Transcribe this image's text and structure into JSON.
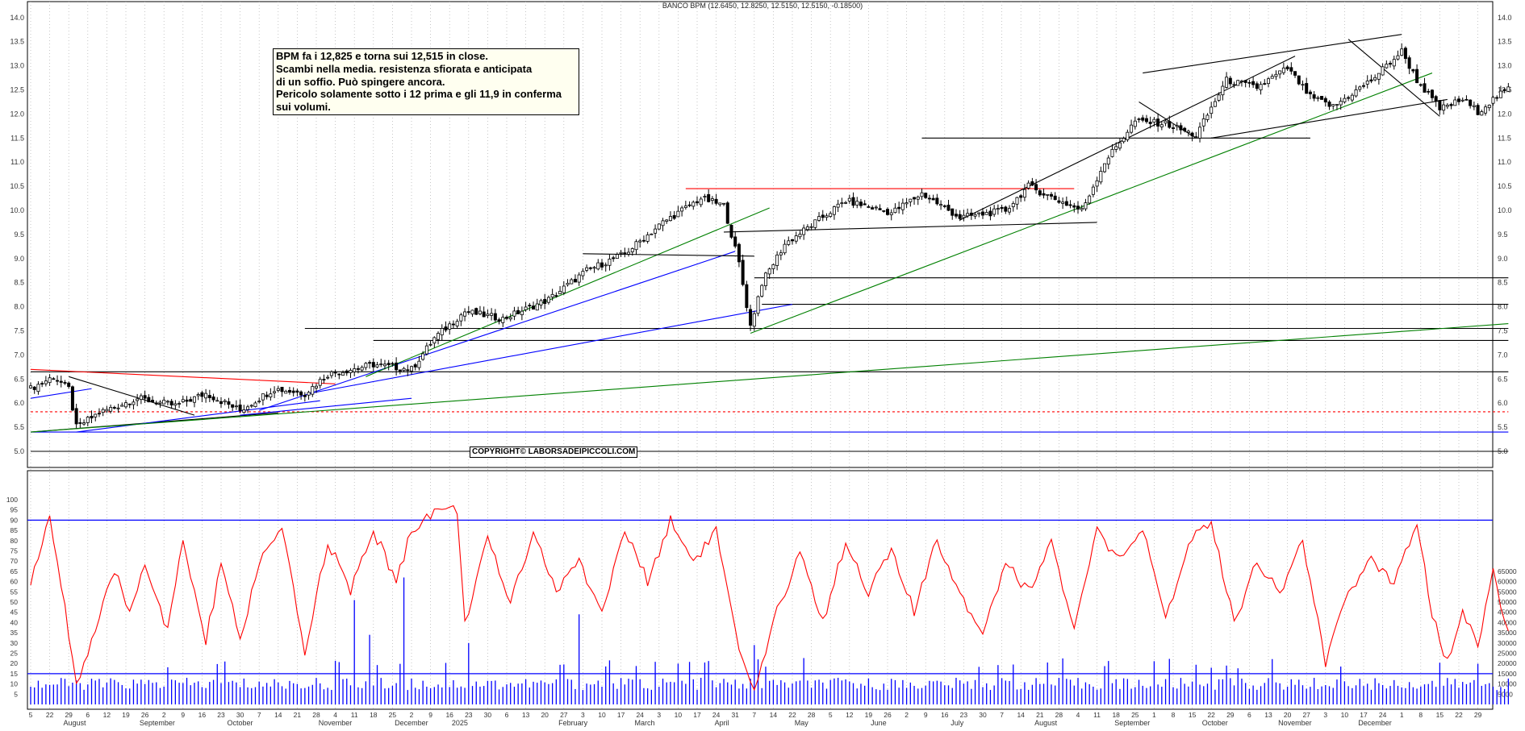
{
  "chart_data": [
    {
      "type": "candlestick",
      "title": "BANCO BPM (12.6450, 12.8250, 12.5150, 12.5150, -0.18500)",
      "ylim": [
        5.0,
        14.0
      ],
      "y_ticks": [
        "5.0",
        "5.5",
        "6.0",
        "6.5",
        "7.0",
        "7.5",
        "8.0",
        "8.5",
        "9.0",
        "9.5",
        "10.0",
        "10.5",
        "11.0",
        "11.5",
        "12.0",
        "12.5",
        "13.0",
        "13.5",
        "14.0"
      ],
      "grid": "vertical dotted",
      "last_bar": {
        "open": 12.645,
        "high": 12.825,
        "low": 12.515,
        "close": 12.515,
        "change": -0.185
      },
      "close_path_anchors": [
        {
          "i": 0,
          "close": 6.3
        },
        {
          "i": 6,
          "close": 6.55
        },
        {
          "i": 10,
          "close": 6.3
        },
        {
          "i": 12,
          "close": 5.5
        },
        {
          "i": 18,
          "close": 5.8
        },
        {
          "i": 28,
          "close": 6.1
        },
        {
          "i": 38,
          "close": 5.95
        },
        {
          "i": 46,
          "close": 6.2
        },
        {
          "i": 55,
          "close": 5.85
        },
        {
          "i": 64,
          "close": 6.3
        },
        {
          "i": 72,
          "close": 6.2
        },
        {
          "i": 78,
          "close": 6.6
        },
        {
          "i": 90,
          "close": 6.8
        },
        {
          "i": 100,
          "close": 6.7
        },
        {
          "i": 106,
          "close": 7.35
        },
        {
          "i": 114,
          "close": 7.9
        },
        {
          "i": 124,
          "close": 7.75
        },
        {
          "i": 136,
          "close": 8.15
        },
        {
          "i": 146,
          "close": 8.75
        },
        {
          "i": 156,
          "close": 9.1
        },
        {
          "i": 166,
          "close": 9.75
        },
        {
          "i": 176,
          "close": 10.25
        },
        {
          "i": 182,
          "close": 10.1
        },
        {
          "i": 184,
          "close": 9.5
        },
        {
          "i": 186,
          "close": 8.9
        },
        {
          "i": 189,
          "close": 7.6
        },
        {
          "i": 192,
          "close": 8.5
        },
        {
          "i": 198,
          "close": 9.3
        },
        {
          "i": 206,
          "close": 9.75
        },
        {
          "i": 214,
          "close": 10.2
        },
        {
          "i": 226,
          "close": 9.95
        },
        {
          "i": 234,
          "close": 10.35
        },
        {
          "i": 244,
          "close": 9.85
        },
        {
          "i": 256,
          "close": 10.0
        },
        {
          "i": 262,
          "close": 10.5
        },
        {
          "i": 270,
          "close": 10.2
        },
        {
          "i": 276,
          "close": 10.0
        },
        {
          "i": 282,
          "close": 11.0
        },
        {
          "i": 290,
          "close": 11.85
        },
        {
          "i": 298,
          "close": 11.8
        },
        {
          "i": 306,
          "close": 11.55
        },
        {
          "i": 314,
          "close": 12.7
        },
        {
          "i": 322,
          "close": 12.55
        },
        {
          "i": 330,
          "close": 12.95
        },
        {
          "i": 336,
          "close": 12.35
        },
        {
          "i": 342,
          "close": 12.15
        },
        {
          "i": 352,
          "close": 12.7
        },
        {
          "i": 360,
          "close": 13.3
        },
        {
          "i": 364,
          "close": 12.7
        },
        {
          "i": 370,
          "close": 12.1
        },
        {
          "i": 376,
          "close": 12.3
        },
        {
          "i": 380,
          "close": 12.05
        },
        {
          "i": 384,
          "close": 12.3
        },
        {
          "i": 388,
          "close": 12.515
        }
      ],
      "trendlines": [
        {
          "color": "#000000",
          "from": {
            "i": 0,
            "y": 6.65
          },
          "to": {
            "i": 388,
            "y": 6.65
          }
        },
        {
          "color": "#000000",
          "from": {
            "i": 0,
            "y": 5.0
          },
          "to": {
            "i": 388,
            "y": 5.0
          }
        },
        {
          "color": "#0000ff",
          "from": {
            "i": 0,
            "y": 5.4
          },
          "to": {
            "i": 388,
            "y": 5.4
          }
        },
        {
          "color": "#ff0000",
          "dashed": true,
          "from": {
            "i": 0,
            "y": 5.82
          },
          "to": {
            "i": 388,
            "y": 5.82
          }
        },
        {
          "color": "#000000",
          "from": {
            "i": 72,
            "y": 7.55
          },
          "to": {
            "i": 388,
            "y": 7.55
          }
        },
        {
          "color": "#000000",
          "from": {
            "i": 90,
            "y": 7.3
          },
          "to": {
            "i": 388,
            "y": 7.3
          }
        },
        {
          "color": "#000000",
          "from": {
            "i": 192,
            "y": 8.05
          },
          "to": {
            "i": 388,
            "y": 8.05
          }
        },
        {
          "color": "#000000",
          "from": {
            "i": 190,
            "y": 8.6
          },
          "to": {
            "i": 388,
            "y": 8.6
          }
        },
        {
          "color": "#ff0000",
          "from": {
            "i": 0,
            "y": 6.7
          },
          "to": {
            "i": 80,
            "y": 6.4
          }
        },
        {
          "color": "#000000",
          "from": {
            "i": 10,
            "y": 6.55
          },
          "to": {
            "i": 43,
            "y": 5.75
          }
        },
        {
          "color": "#000000",
          "from": {
            "i": 0,
            "y": 5.4
          },
          "to": {
            "i": 65,
            "y": 5.8
          }
        },
        {
          "color": "#0000ff",
          "from": {
            "i": 0,
            "y": 6.1
          },
          "to": {
            "i": 16,
            "y": 6.3
          }
        },
        {
          "color": "#0000ff",
          "from": {
            "i": 12,
            "y": 5.4
          },
          "to": {
            "i": 76,
            "y": 6.05
          }
        },
        {
          "color": "#0000ff",
          "from": {
            "i": 55,
            "y": 5.75
          },
          "to": {
            "i": 100,
            "y": 6.1
          }
        },
        {
          "color": "#0000ff",
          "from": {
            "i": 60,
            "y": 5.85
          },
          "to": {
            "i": 185,
            "y": 9.15
          }
        },
        {
          "color": "#0000ff",
          "from": {
            "i": 73,
            "y": 6.2
          },
          "to": {
            "i": 200,
            "y": 8.05
          }
        },
        {
          "color": "#008000",
          "from": {
            "i": 0,
            "y": 5.4
          },
          "to": {
            "i": 388,
            "y": 7.65
          }
        },
        {
          "color": "#008000",
          "from": {
            "i": 88,
            "y": 6.55
          },
          "to": {
            "i": 194,
            "y": 10.05
          }
        },
        {
          "color": "#008000",
          "from": {
            "i": 189,
            "y": 7.45
          },
          "to": {
            "i": 368,
            "y": 12.85
          }
        },
        {
          "color": "#000000",
          "from": {
            "i": 145,
            "y": 9.1
          },
          "to": {
            "i": 190,
            "y": 9.05
          }
        },
        {
          "color": "#000000",
          "from": {
            "i": 182,
            "y": 9.55
          },
          "to": {
            "i": 280,
            "y": 9.75
          }
        },
        {
          "color": "#ff0000",
          "from": {
            "i": 172,
            "y": 10.45
          },
          "to": {
            "i": 274,
            "y": 10.45
          }
        },
        {
          "color": "#000000",
          "from": {
            "i": 234,
            "y": 11.5
          },
          "to": {
            "i": 336,
            "y": 11.5
          }
        },
        {
          "color": "#000000",
          "from": {
            "i": 244,
            "y": 9.8
          },
          "to": {
            "i": 332,
            "y": 13.2
          }
        },
        {
          "color": "#000000",
          "from": {
            "i": 291,
            "y": 12.25
          },
          "to": {
            "i": 306,
            "y": 11.5
          }
        },
        {
          "color": "#000000",
          "from": {
            "i": 292,
            "y": 12.85
          },
          "to": {
            "i": 360,
            "y": 13.65
          }
        },
        {
          "color": "#000000",
          "from": {
            "i": 310,
            "y": 11.5
          },
          "to": {
            "i": 372,
            "y": 12.3
          }
        },
        {
          "color": "#000000",
          "from": {
            "i": 346,
            "y": 13.55
          },
          "to": {
            "i": 370,
            "y": 11.95
          }
        }
      ],
      "annotation_lines": [
        "BPM fa i 12,825 e torna sui 12,515 in close.",
        "Scambi nella media. resistenza sfiorata e anticipata",
        "di un soffio. Può spingere ancora.",
        "Pericolo solamente sotto i 12 prima e gli 11,9 in conferma",
        "sui volumi."
      ],
      "copyright": "COPYRIGHT© LABORSADEIPICCOLI.COM"
    },
    {
      "type": "line+bar",
      "y_left_ticks": [
        "5",
        "10",
        "15",
        "20",
        "25",
        "30",
        "35",
        "40",
        "45",
        "50",
        "55",
        "60",
        "65",
        "70",
        "75",
        "80",
        "85",
        "90",
        "95",
        "100"
      ],
      "y_right_ticks": [
        "5000",
        "10000",
        "15000",
        "20000",
        "25000",
        "30000",
        "35000",
        "40000",
        "45000",
        "50000",
        "55000",
        "60000",
        "65000"
      ],
      "oscillator_levels": [
        15,
        90
      ],
      "oscillator_anchors": [
        {
          "i": 0,
          "v": 60
        },
        {
          "i": 5,
          "v": 90
        },
        {
          "i": 8,
          "v": 60
        },
        {
          "i": 12,
          "v": 10
        },
        {
          "i": 16,
          "v": 30
        },
        {
          "i": 22,
          "v": 65
        },
        {
          "i": 26,
          "v": 45
        },
        {
          "i": 30,
          "v": 70
        },
        {
          "i": 36,
          "v": 35
        },
        {
          "i": 40,
          "v": 80
        },
        {
          "i": 46,
          "v": 30
        },
        {
          "i": 50,
          "v": 70
        },
        {
          "i": 55,
          "v": 30
        },
        {
          "i": 60,
          "v": 70
        },
        {
          "i": 66,
          "v": 85
        },
        {
          "i": 72,
          "v": 25
        },
        {
          "i": 78,
          "v": 80
        },
        {
          "i": 84,
          "v": 55
        },
        {
          "i": 90,
          "v": 85
        },
        {
          "i": 96,
          "v": 60
        },
        {
          "i": 100,
          "v": 85
        },
        {
          "i": 106,
          "v": 95
        },
        {
          "i": 112,
          "v": 95
        },
        {
          "i": 114,
          "v": 40
        },
        {
          "i": 120,
          "v": 80
        },
        {
          "i": 126,
          "v": 50
        },
        {
          "i": 132,
          "v": 85
        },
        {
          "i": 138,
          "v": 55
        },
        {
          "i": 144,
          "v": 70
        },
        {
          "i": 150,
          "v": 45
        },
        {
          "i": 156,
          "v": 85
        },
        {
          "i": 162,
          "v": 60
        },
        {
          "i": 168,
          "v": 90
        },
        {
          "i": 174,
          "v": 70
        },
        {
          "i": 180,
          "v": 85
        },
        {
          "i": 186,
          "v": 25
        },
        {
          "i": 190,
          "v": 5
        },
        {
          "i": 196,
          "v": 45
        },
        {
          "i": 202,
          "v": 75
        },
        {
          "i": 208,
          "v": 40
        },
        {
          "i": 214,
          "v": 80
        },
        {
          "i": 220,
          "v": 55
        },
        {
          "i": 226,
          "v": 75
        },
        {
          "i": 232,
          "v": 45
        },
        {
          "i": 238,
          "v": 80
        },
        {
          "i": 244,
          "v": 55
        },
        {
          "i": 250,
          "v": 35
        },
        {
          "i": 256,
          "v": 70
        },
        {
          "i": 262,
          "v": 55
        },
        {
          "i": 268,
          "v": 80
        },
        {
          "i": 274,
          "v": 35
        },
        {
          "i": 280,
          "v": 85
        },
        {
          "i": 286,
          "v": 70
        },
        {
          "i": 292,
          "v": 85
        },
        {
          "i": 298,
          "v": 40
        },
        {
          "i": 304,
          "v": 80
        },
        {
          "i": 310,
          "v": 90
        },
        {
          "i": 316,
          "v": 40
        },
        {
          "i": 322,
          "v": 70
        },
        {
          "i": 328,
          "v": 55
        },
        {
          "i": 334,
          "v": 80
        },
        {
          "i": 340,
          "v": 20
        },
        {
          "i": 346,
          "v": 55
        },
        {
          "i": 352,
          "v": 70
        },
        {
          "i": 358,
          "v": 60
        },
        {
          "i": 364,
          "v": 90
        },
        {
          "i": 368,
          "v": 45
        },
        {
          "i": 372,
          "v": 20
        },
        {
          "i": 376,
          "v": 45
        },
        {
          "i": 380,
          "v": 30
        },
        {
          "i": 384,
          "v": 65
        },
        {
          "i": 388,
          "v": 35
        }
      ],
      "volume_spikes": [
        {
          "i": 85,
          "v": 51000
        },
        {
          "i": 89,
          "v": 34000
        },
        {
          "i": 98,
          "v": 62000
        },
        {
          "i": 115,
          "v": 30000
        },
        {
          "i": 144,
          "v": 44000
        },
        {
          "i": 190,
          "v": 29000
        },
        {
          "i": 191,
          "v": 22000
        }
      ],
      "volume_baseline": 7000
    }
  ],
  "x_axis": {
    "ticks": [
      "5",
      "22",
      "29",
      "6",
      "12",
      "19",
      "26",
      "2",
      "9",
      "16",
      "23",
      "30",
      "7",
      "14",
      "21",
      "28",
      "4",
      "11",
      "18",
      "25",
      "2",
      "9",
      "16",
      "23",
      "30",
      "6",
      "13",
      "20",
      "27",
      "3",
      "10",
      "17",
      "24",
      "3",
      "10",
      "17",
      "24",
      "31",
      "7",
      "14",
      "22",
      "28",
      "5",
      "12",
      "19",
      "26",
      "2",
      "9",
      "16",
      "23",
      "30",
      "7",
      "14",
      "21",
      "28",
      "4",
      "11",
      "18",
      "25",
      "1",
      "8",
      "15",
      "22",
      "29",
      "6",
      "13",
      "20",
      "27",
      "3",
      "10",
      "17",
      "24",
      "1",
      "8",
      "15",
      "22",
      "29"
    ],
    "months": [
      {
        "label": "August",
        "i": 9
      },
      {
        "label": "September",
        "i": 29
      },
      {
        "label": "October",
        "i": 52
      },
      {
        "label": "November",
        "i": 76
      },
      {
        "label": "December",
        "i": 96
      },
      {
        "label": "2025",
        "i": 111
      },
      {
        "label": "February",
        "i": 139
      },
      {
        "label": "March",
        "i": 159
      },
      {
        "label": "April",
        "i": 180
      },
      {
        "label": "May",
        "i": 201
      },
      {
        "label": "June",
        "i": 221
      },
      {
        "label": "July",
        "i": 242
      },
      {
        "label": "August",
        "i": 264
      },
      {
        "label": "September",
        "i": 285
      },
      {
        "label": "October",
        "i": 308
      },
      {
        "label": "November",
        "i": 328
      },
      {
        "label": "December",
        "i": 349
      }
    ]
  },
  "colors": {
    "candle": "#000000",
    "oscillator": "#ff0000",
    "volume": "#0000ff",
    "grid": "#b0b0b0"
  }
}
